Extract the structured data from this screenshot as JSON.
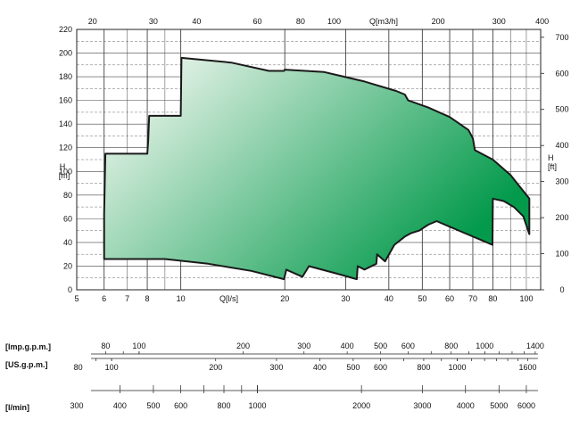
{
  "chart_data": {
    "type": "area",
    "title": "",
    "x_axis": {
      "label": "Q[l/s]",
      "scale": "log",
      "range": [
        5,
        110
      ],
      "ticks": [
        "5",
        "6",
        "7",
        "8",
        "10",
        "20",
        "30",
        "40",
        "50",
        "60",
        "70",
        "80",
        "100"
      ]
    },
    "top_axis": {
      "label": "Q[m3/h]",
      "scale": "log",
      "ticks": [
        "20",
        "30",
        "40",
        "60",
        "80",
        "100",
        "200",
        "300",
        "400"
      ]
    },
    "y_left": {
      "label_line1": "H",
      "label_line2": "[m]",
      "range": [
        0,
        220
      ],
      "ticks": [
        "0",
        "20",
        "40",
        "60",
        "80",
        "100",
        "120",
        "140",
        "160",
        "180",
        "200",
        "220"
      ]
    },
    "y_right": {
      "label_line1": "H",
      "label_line2": "[ft]",
      "ticks": [
        "0",
        "100",
        "200",
        "300",
        "400",
        "500",
        "600",
        "700"
      ]
    },
    "grid": true,
    "fill_colors": {
      "light": "#ffffff",
      "dark": "#049a4c"
    },
    "envelope_upper": [
      {
        "x": 6.0,
        "y": 64
      },
      {
        "x": 6.05,
        "y": 115
      },
      {
        "x": 8.0,
        "y": 115
      },
      {
        "x": 8.05,
        "y": 126
      },
      {
        "x": 8.1,
        "y": 147
      },
      {
        "x": 10.0,
        "y": 147
      },
      {
        "x": 10.05,
        "y": 196
      },
      {
        "x": 14,
        "y": 192
      },
      {
        "x": 18,
        "y": 185
      },
      {
        "x": 19.9,
        "y": 185
      },
      {
        "x": 20,
        "y": 186
      },
      {
        "x": 26,
        "y": 184
      },
      {
        "x": 34,
        "y": 176
      },
      {
        "x": 42,
        "y": 168
      },
      {
        "x": 44.5,
        "y": 165
      },
      {
        "x": 45.5,
        "y": 160
      },
      {
        "x": 52,
        "y": 154
      },
      {
        "x": 60,
        "y": 146
      },
      {
        "x": 68,
        "y": 135
      },
      {
        "x": 70,
        "y": 128
      },
      {
        "x": 71,
        "y": 118
      },
      {
        "x": 80,
        "y": 110
      },
      {
        "x": 90,
        "y": 97
      },
      {
        "x": 102,
        "y": 77
      }
    ],
    "envelope_lower": [
      {
        "x": 102,
        "y": 47
      },
      {
        "x": 98,
        "y": 62
      },
      {
        "x": 92,
        "y": 70
      },
      {
        "x": 86,
        "y": 75
      },
      {
        "x": 80,
        "y": 77
      },
      {
        "x": 79.8,
        "y": 38
      },
      {
        "x": 65,
        "y": 49
      },
      {
        "x": 55,
        "y": 58
      },
      {
        "x": 52,
        "y": 55
      },
      {
        "x": 49,
        "y": 50
      },
      {
        "x": 46.5,
        "y": 48
      },
      {
        "x": 44.5,
        "y": 45
      },
      {
        "x": 41.5,
        "y": 38
      },
      {
        "x": 39,
        "y": 24
      },
      {
        "x": 37,
        "y": 30
      },
      {
        "x": 36.8,
        "y": 22
      },
      {
        "x": 34,
        "y": 17
      },
      {
        "x": 32.5,
        "y": 20
      },
      {
        "x": 32.3,
        "y": 9
      },
      {
        "x": 28,
        "y": 14
      },
      {
        "x": 23.5,
        "y": 20
      },
      {
        "x": 22.5,
        "y": 11
      },
      {
        "x": 20.2,
        "y": 17
      },
      {
        "x": 19.9,
        "y": 9
      },
      {
        "x": 16,
        "y": 16
      },
      {
        "x": 12,
        "y": 22
      },
      {
        "x": 9,
        "y": 26
      },
      {
        "x": 7,
        "y": 26
      },
      {
        "x": 6,
        "y": 26
      }
    ]
  },
  "bottom_scales": [
    {
      "label": "[Imp.g.p.m.]",
      "labels": [
        "80",
        "100",
        "200",
        "300",
        "400",
        "500",
        "600",
        "800",
        "1000",
        "1400"
      ]
    },
    {
      "label": "[US.g.p.m.]",
      "labels": [
        "80",
        "100",
        "200",
        "300",
        "400",
        "500",
        "600",
        "800",
        "1000",
        "1600"
      ]
    },
    {
      "label": "[l/min]",
      "labels": [
        "300",
        "400",
        "500",
        "600",
        "800",
        "1000",
        "2000",
        "3000",
        "4000",
        "5000",
        "6000"
      ]
    }
  ]
}
